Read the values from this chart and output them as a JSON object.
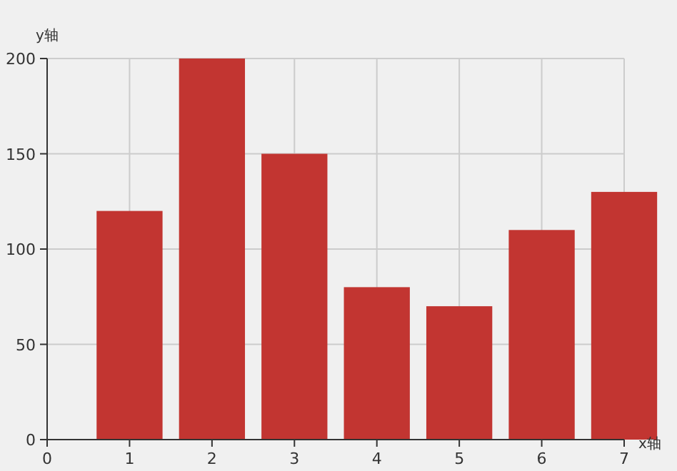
{
  "chart_data": {
    "type": "bar",
    "xlabel": "x轴",
    "ylabel": "y轴",
    "x": [
      1,
      2,
      3,
      4,
      5,
      6,
      7
    ],
    "values": [
      120,
      200,
      150,
      80,
      70,
      110,
      130
    ],
    "color": "#c23531",
    "xlim": [
      0,
      7
    ],
    "xticks": [
      0,
      1,
      2,
      3,
      4,
      5,
      6,
      7
    ],
    "ylim": [
      0,
      200
    ],
    "yticks": [
      0,
      50,
      100,
      150,
      200
    ],
    "grid": true
  }
}
